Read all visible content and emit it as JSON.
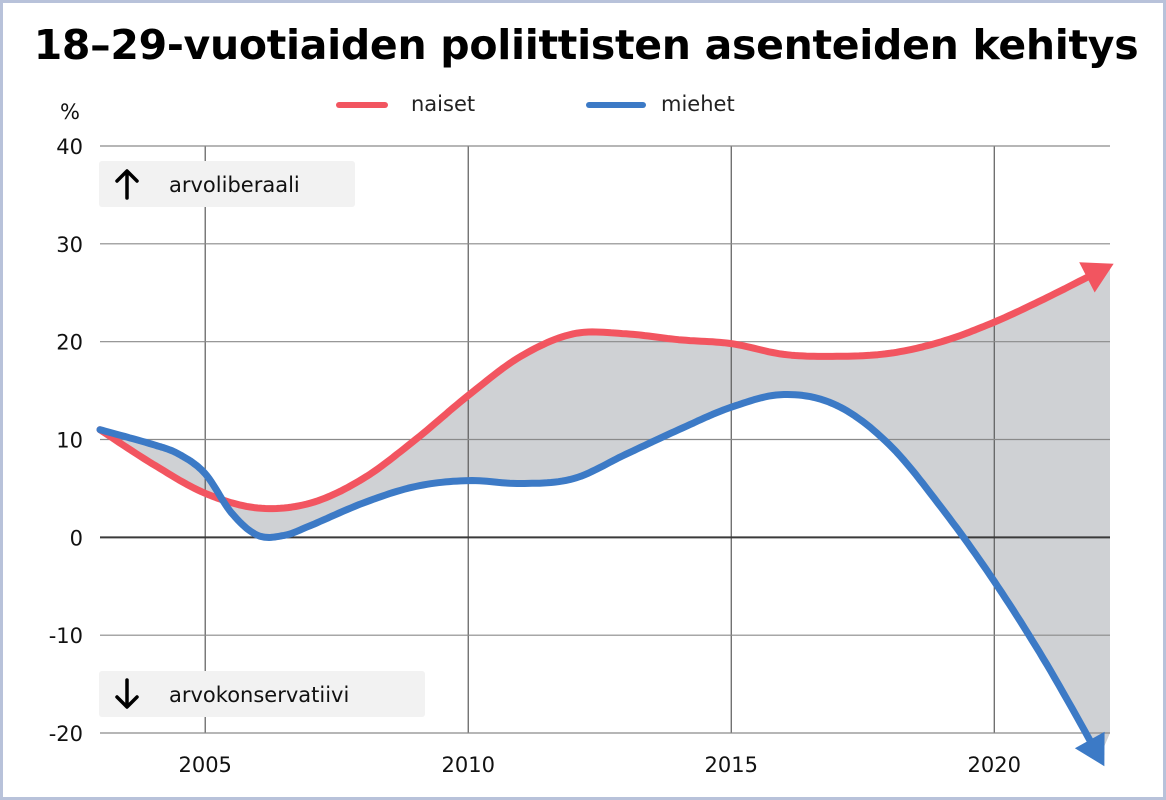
{
  "chart_data": {
    "type": "line",
    "title": "18–29-vuotiaiden poliittisten asenteiden kehitys",
    "ylabel": "%",
    "xlabel": "",
    "xlim": [
      2003,
      2022.2
    ],
    "ylim": [
      -20,
      40
    ],
    "x_ticks": [
      2005,
      2010,
      2015,
      2020
    ],
    "y_ticks": [
      40,
      30,
      20,
      10,
      0,
      -10,
      -20
    ],
    "grid": true,
    "legend": "top-center",
    "shaded_between_series": true,
    "colors": {
      "naiset": "#f25560",
      "miehet": "#3c7ac6",
      "fill": "#cfd1d4",
      "grid": "#5a5a5a",
      "annotation_bg": "#f2f2f2"
    },
    "annotations": [
      {
        "text": "arvoliberaali",
        "arrow": "up",
        "placement": "top-left"
      },
      {
        "text": "arvokonservatiivi",
        "arrow": "down",
        "placement": "bottom-left"
      }
    ],
    "series": [
      {
        "name": "naiset",
        "arrow_end": true,
        "x": [
          2003,
          2004,
          2005,
          2006,
          2007,
          2008,
          2009,
          2010,
          2011,
          2012,
          2013,
          2014,
          2015,
          2016,
          2017,
          2018,
          2019,
          2020,
          2021,
          2022.1
        ],
        "y": [
          11,
          7.5,
          4.5,
          3,
          3.5,
          6,
          10,
          14.5,
          18.5,
          20.8,
          20.8,
          20.2,
          19.8,
          18.7,
          18.5,
          18.8,
          20,
          22,
          24.5,
          27.5
        ]
      },
      {
        "name": "miehet",
        "arrow_end": true,
        "x": [
          2003,
          2004,
          2004.5,
          2005,
          2005.5,
          2006,
          2006.5,
          2007,
          2008,
          2009,
          2010,
          2011,
          2012,
          2013,
          2014,
          2015,
          2016,
          2017,
          2018,
          2019,
          2020,
          2021,
          2022
        ],
        "y": [
          11,
          9.5,
          8.5,
          6.5,
          2.5,
          0.2,
          0.2,
          1.2,
          3.5,
          5.2,
          5.8,
          5.5,
          6,
          8.5,
          11,
          13.3,
          14.6,
          13.5,
          9.5,
          3,
          -4.5,
          -13,
          -22.5
        ]
      }
    ]
  }
}
